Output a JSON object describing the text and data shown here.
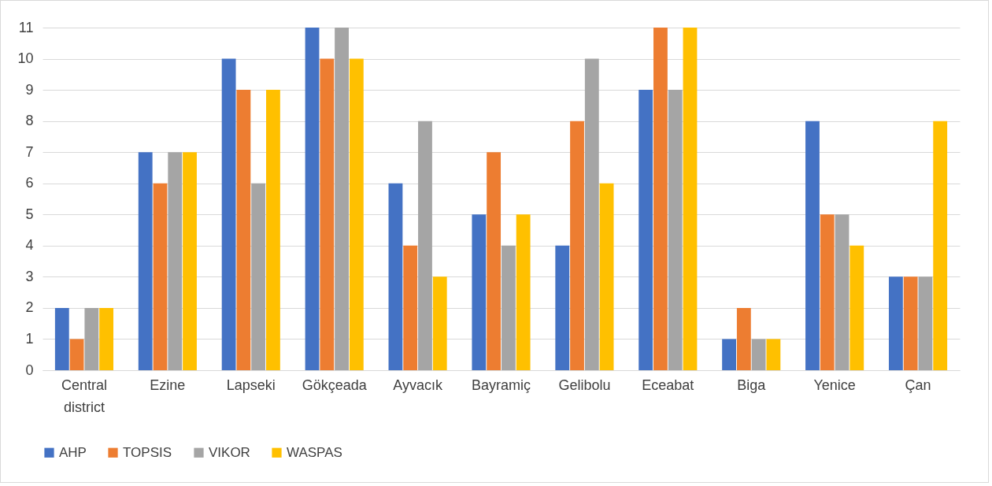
{
  "chart_data": {
    "type": "bar",
    "categories": [
      "Central district",
      "Ezine",
      "Lapseki",
      "Gökçeada",
      "Ayvacık",
      "Bayramiç",
      "Gelibolu",
      "Eceabat",
      "Biga",
      "Yenice",
      "Çan"
    ],
    "series": [
      {
        "name": "AHP",
        "color": "#4472c4",
        "values": [
          2,
          7,
          10,
          11,
          6,
          5,
          4,
          9,
          1,
          8,
          3
        ]
      },
      {
        "name": "TOPSIS",
        "color": "#ed7d31",
        "values": [
          1,
          6,
          9,
          10,
          4,
          7,
          8,
          11,
          2,
          5,
          3
        ]
      },
      {
        "name": "VIKOR",
        "color": "#a5a5a5",
        "values": [
          2,
          7,
          6,
          11,
          8,
          4,
          10,
          9,
          1,
          5,
          3
        ]
      },
      {
        "name": "WASPAS",
        "color": "#ffc000",
        "values": [
          2,
          7,
          9,
          10,
          3,
          5,
          6,
          11,
          1,
          4,
          8
        ]
      }
    ],
    "ylim": [
      0,
      11
    ],
    "yticks": [
      0,
      1,
      2,
      3,
      4,
      5,
      6,
      7,
      8,
      9,
      10,
      11
    ],
    "grid": "y",
    "legend": "bottom"
  }
}
